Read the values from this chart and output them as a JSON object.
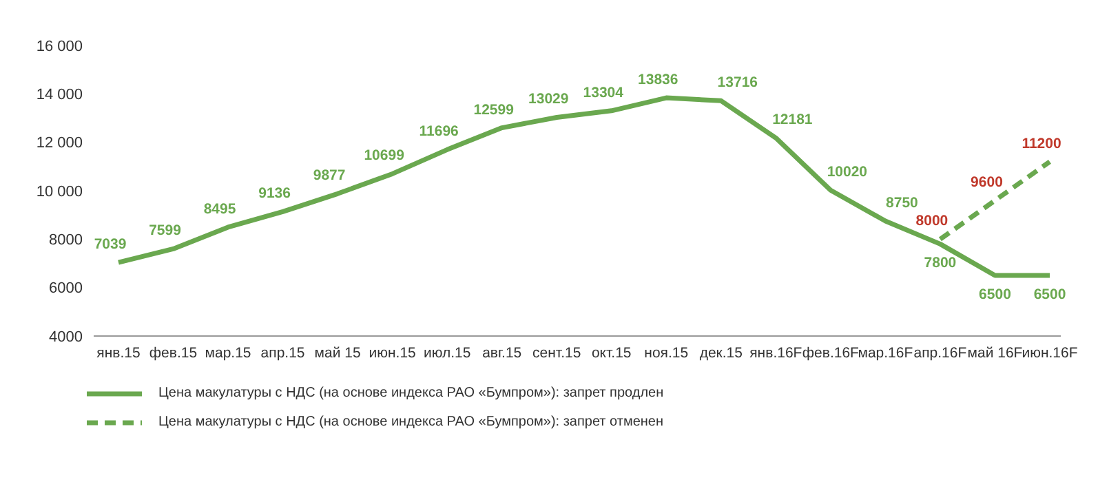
{
  "chart_data": {
    "type": "line",
    "categories": [
      "янв.15",
      "фев.15",
      "мар.15",
      "апр.15",
      "май 15",
      "июн.15",
      "июл.15",
      "авг.15",
      "сент.15",
      "окт.15",
      "ноя.15",
      "дек.15",
      "янв.16F",
      "фев.16F",
      "мар.16F",
      "апр.16F",
      "май 16F",
      "июн.16F"
    ],
    "series": [
      {
        "name": "Цена макулатуры с НДС (на основе индекса РАО «Бумпром»): запрет продлен",
        "color": "#6aa84f",
        "line_style": "solid",
        "values": [
          7039,
          7599,
          8495,
          9136,
          9877,
          10699,
          11696,
          12599,
          13029,
          13304,
          13836,
          13716,
          12181,
          10020,
          8750,
          7800,
          6500,
          6500
        ]
      },
      {
        "name": "Цена макулатуры с НДС (на основе индекса РАО «Бумпром»): запрет отменен",
        "color": "#6aa84f",
        "line_style": "dashed",
        "values": [
          null,
          null,
          null,
          null,
          null,
          null,
          null,
          null,
          null,
          null,
          null,
          null,
          null,
          null,
          null,
          8000,
          9600,
          11200
        ]
      }
    ],
    "ylim": [
      4000,
      16000
    ],
    "yticks": [
      4000,
      6000,
      8000,
      {
        "value": 10000,
        "label": "10 000"
      },
      {
        "value": 12000,
        "label": "12 000"
      },
      {
        "value": 14000,
        "label": "14 000"
      },
      {
        "value": 16000,
        "label": "16 000"
      }
    ],
    "data_labels": true,
    "grid": false,
    "legend": "bottom left",
    "marker": "none"
  }
}
